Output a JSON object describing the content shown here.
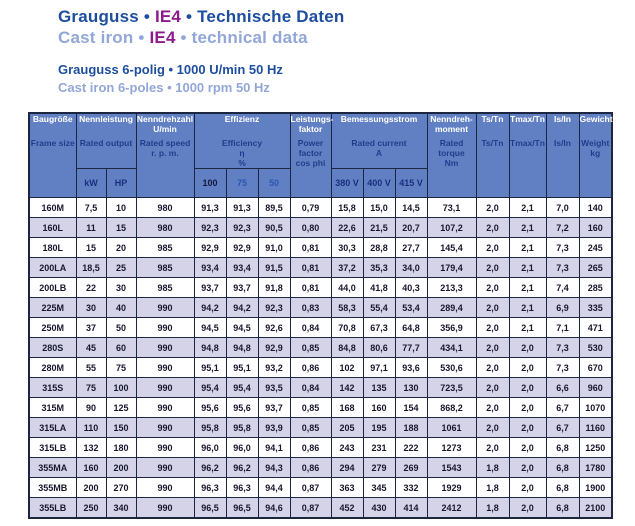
{
  "header": {
    "title_de_segments": [
      {
        "text": "Grauguss • ",
        "color": "#1d4e9e"
      },
      {
        "text": "IE4",
        "color": "#8c1a8e"
      },
      {
        "text": " • Technische Daten",
        "color": "#1d4e9e"
      }
    ],
    "title_en_segments": [
      {
        "text": "Cast iron • ",
        "color": "#92a7d7"
      },
      {
        "text": "IE4",
        "color": "#8c1a8e"
      },
      {
        "text": " • technical data",
        "color": "#92a7d7"
      }
    ],
    "subtitle_de": "Grauguss 6-polig • 1000 U/min 50 Hz",
    "subtitle_en": "Cast iron 6-poles • 1000 rpm 50 Hz"
  },
  "colors": {
    "title_blue": "#1d4e9e",
    "title_light_blue": "#92a7d7",
    "ie4_purple": "#8c1a8e",
    "table_header_bg": "#6180c3",
    "table_border": "#1c2640",
    "row_alt_bg": "#d5d3e7",
    "header_text_de": "#ffffff",
    "header_text_en": "#223c8c"
  },
  "table": {
    "columns": [
      {
        "de": "Baugröße",
        "en": "Frame size"
      },
      {
        "de": "Nennleistung",
        "en": "Rated output",
        "subs": [
          "kW",
          "HP"
        ]
      },
      {
        "de": "Nenndrehzahl\nU/min",
        "en": "Rated speed\nr. p. m."
      },
      {
        "de": "Effizienz",
        "en": "Efficiency\nη\n%",
        "subs": [
          "100",
          "75",
          "50"
        ]
      },
      {
        "de": "Leistungs-\nfaktor",
        "en": "Power\nfactor\ncos phi"
      },
      {
        "de": "Bemessungsstrom",
        "en": "Rated current\nA",
        "subs": [
          "380 V",
          "400 V",
          "415 V"
        ]
      },
      {
        "de": "Nenndreh-\nmoment",
        "en": "Rated\ntorque\nNm"
      },
      {
        "de": "Ts/Tn",
        "en": "Ts/Tn"
      },
      {
        "de": "Tmax/Tn",
        "en": "Tmax/Tn"
      },
      {
        "de": "Is/In",
        "en": "Is/In"
      },
      {
        "de": "Gewicht",
        "en": "Weight\nkg"
      }
    ],
    "rows": [
      [
        "160M",
        "7,5",
        "10",
        "980",
        "91,3",
        "91,3",
        "89,5",
        "0,79",
        "15,8",
        "15,0",
        "14,5",
        "73,1",
        "2,0",
        "2,1",
        "7,0",
        "140"
      ],
      [
        "160L",
        "11",
        "15",
        "980",
        "92,3",
        "92,3",
        "90,5",
        "0,80",
        "22,6",
        "21,5",
        "20,7",
        "107,2",
        "2,0",
        "2,1",
        "7,2",
        "160"
      ],
      [
        "180L",
        "15",
        "20",
        "985",
        "92,9",
        "92,9",
        "91,0",
        "0,81",
        "30,3",
        "28,8",
        "27,7",
        "145,4",
        "2,0",
        "2,1",
        "7,3",
        "245"
      ],
      [
        "200LA",
        "18,5",
        "25",
        "985",
        "93,4",
        "93,4",
        "91,5",
        "0,81",
        "37,2",
        "35,3",
        "34,0",
        "179,4",
        "2,0",
        "2,1",
        "7,3",
        "265"
      ],
      [
        "200LB",
        "22",
        "30",
        "985",
        "93,7",
        "93,7",
        "91,8",
        "0,81",
        "44,0",
        "41,8",
        "40,3",
        "213,3",
        "2,0",
        "2,1",
        "7,4",
        "285"
      ],
      [
        "225M",
        "30",
        "40",
        "990",
        "94,2",
        "94,2",
        "92,3",
        "0,83",
        "58,3",
        "55,4",
        "53,4",
        "289,4",
        "2,0",
        "2,1",
        "6,9",
        "335"
      ],
      [
        "250M",
        "37",
        "50",
        "990",
        "94,5",
        "94,5",
        "92,6",
        "0,84",
        "70,8",
        "67,3",
        "64,8",
        "356,9",
        "2,0",
        "2,1",
        "7,1",
        "471"
      ],
      [
        "280S",
        "45",
        "60",
        "990",
        "94,8",
        "94,8",
        "92,9",
        "0,85",
        "84,8",
        "80,6",
        "77,7",
        "434,1",
        "2,0",
        "2,0",
        "7,3",
        "530"
      ],
      [
        "280M",
        "55",
        "75",
        "990",
        "95,1",
        "95,1",
        "93,2",
        "0,86",
        "102",
        "97,1",
        "93,6",
        "530,6",
        "2,0",
        "2,0",
        "7,3",
        "670"
      ],
      [
        "315S",
        "75",
        "100",
        "990",
        "95,4",
        "95,4",
        "93,5",
        "0,84",
        "142",
        "135",
        "130",
        "723,5",
        "2,0",
        "2,0",
        "6,6",
        "960"
      ],
      [
        "315M",
        "90",
        "125",
        "990",
        "95,6",
        "95,6",
        "93,7",
        "0,85",
        "168",
        "160",
        "154",
        "868,2",
        "2,0",
        "2,0",
        "6,7",
        "1070"
      ],
      [
        "315LA",
        "110",
        "150",
        "990",
        "95,8",
        "95,8",
        "93,9",
        "0,85",
        "205",
        "195",
        "188",
        "1061",
        "2,0",
        "2,0",
        "6,7",
        "1160"
      ],
      [
        "315LB",
        "132",
        "180",
        "990",
        "96,0",
        "96,0",
        "94,1",
        "0,86",
        "243",
        "231",
        "222",
        "1273",
        "2,0",
        "2,0",
        "6,8",
        "1250"
      ],
      [
        "355MA",
        "160",
        "200",
        "990",
        "96,2",
        "96,2",
        "94,3",
        "0,86",
        "294",
        "279",
        "269",
        "1543",
        "1,8",
        "2,0",
        "6,8",
        "1780"
      ],
      [
        "355MB",
        "200",
        "270",
        "990",
        "96,3",
        "96,3",
        "94,4",
        "0,87",
        "363",
        "345",
        "332",
        "1929",
        "1,8",
        "2,0",
        "6,8",
        "1900"
      ],
      [
        "355LB",
        "250",
        "340",
        "990",
        "96,5",
        "96,5",
        "94,6",
        "0,87",
        "452",
        "430",
        "414",
        "2412",
        "1,8",
        "2,0",
        "6,8",
        "2100"
      ]
    ]
  }
}
